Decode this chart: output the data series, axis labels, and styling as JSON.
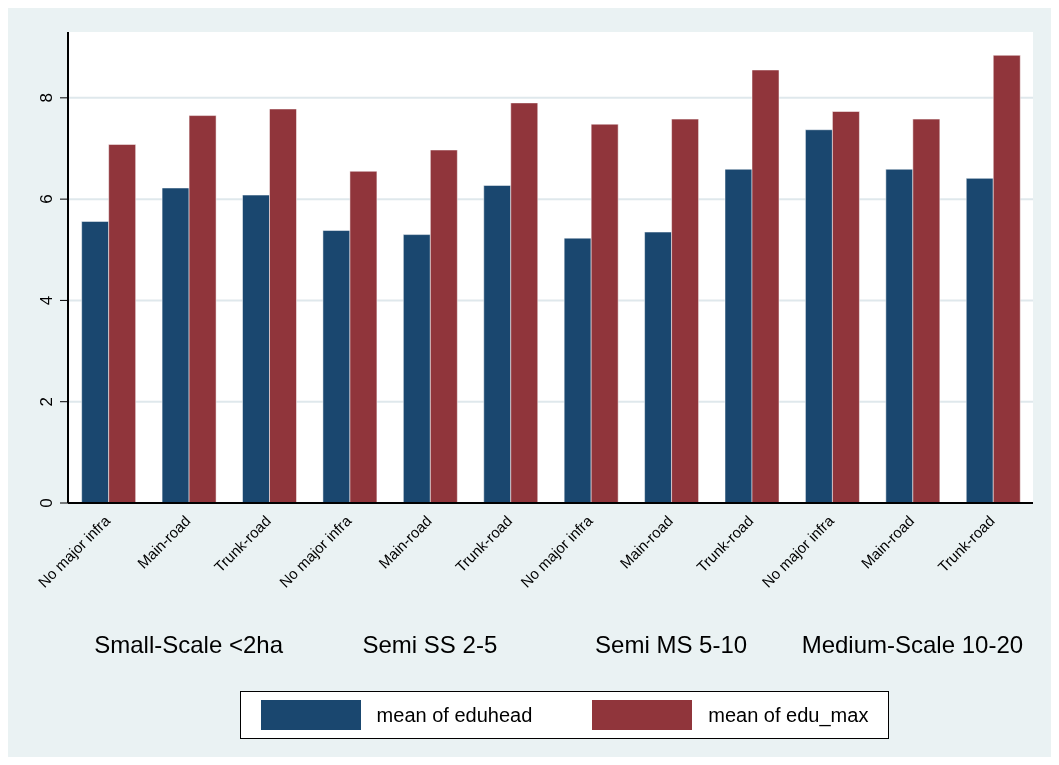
{
  "chart_data": {
    "type": "bar",
    "categories": [
      "No major infra",
      "Main-road",
      "Trunk-road",
      "No major infra",
      "Main-road",
      "Trunk-road",
      "No major infra",
      "Main-road",
      "Trunk-road",
      "No major infra",
      "Main-road",
      "Trunk-road"
    ],
    "series": [
      {
        "name": "mean of eduhead",
        "color": "#1a476f",
        "values": [
          5.56,
          6.22,
          6.08,
          5.38,
          5.3,
          6.27,
          5.23,
          5.35,
          6.59,
          7.37,
          6.59,
          6.41
        ]
      },
      {
        "name": "mean of edu_max",
        "color": "#90353b",
        "values": [
          7.08,
          7.65,
          7.78,
          6.55,
          6.97,
          7.9,
          7.48,
          7.58,
          8.55,
          7.73,
          7.58,
          8.84
        ]
      }
    ],
    "ylim": [
      0,
      9.3
    ],
    "yticks": [
      0,
      2,
      4,
      6,
      8
    ],
    "grid": "y",
    "legend": "bottom",
    "annotations": [
      "Small-Scale <2ha",
      "Semi SS 2-5",
      "Semi MS 5-10",
      "Medium-Scale 10-20"
    ]
  }
}
